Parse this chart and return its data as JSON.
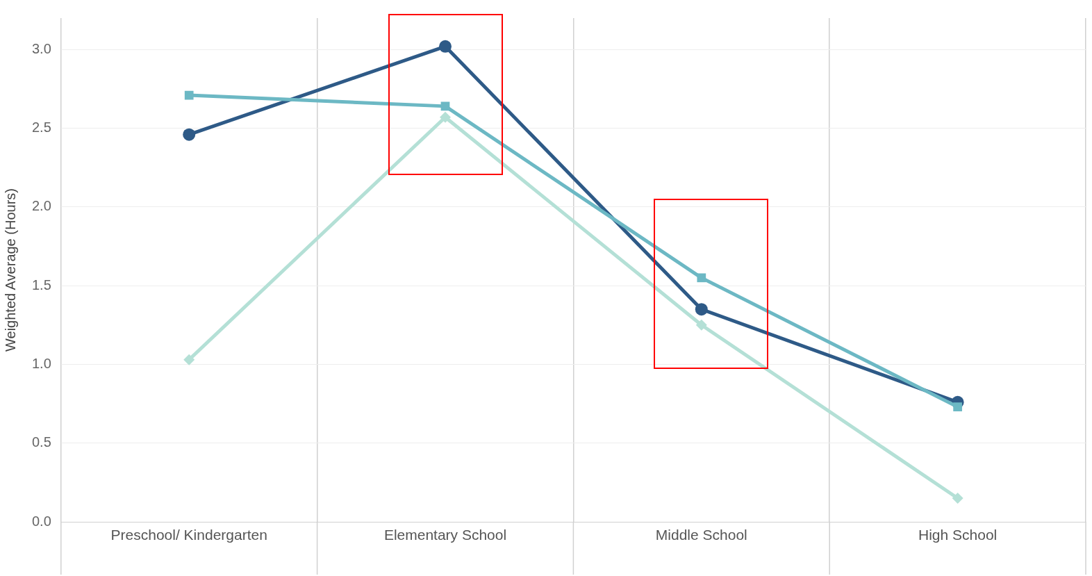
{
  "chart_data": {
    "type": "line",
    "ylabel": "Weighted Average (Hours)",
    "categories": [
      "Preschool/ Kindergarten",
      "Elementary School",
      "Middle School",
      "High School"
    ],
    "series": [
      {
        "color": "#b4e0d6",
        "marker": "diamond",
        "values": [
          1.03,
          2.57,
          1.25,
          0.15
        ]
      },
      {
        "color": "#6cb8c4",
        "marker": "square",
        "values": [
          2.71,
          2.64,
          1.55,
          0.73
        ]
      },
      {
        "color": "#2e5a87",
        "marker": "circle",
        "values": [
          2.46,
          3.02,
          1.35,
          0.76
        ]
      }
    ],
    "ylim": [
      0,
      3.2
    ],
    "yticks": [
      {
        "value": 0,
        "label": "0.0"
      },
      {
        "value": 0.5,
        "label": "0.5"
      },
      {
        "value": 1,
        "label": "1.0"
      },
      {
        "value": 1.5,
        "label": "1.5"
      },
      {
        "value": 2,
        "label": "2.0"
      },
      {
        "value": 2.5,
        "label": "2.5"
      },
      {
        "value": 3,
        "label": "3.0"
      }
    ],
    "grid": true,
    "legend": false,
    "line_style": "solid"
  }
}
